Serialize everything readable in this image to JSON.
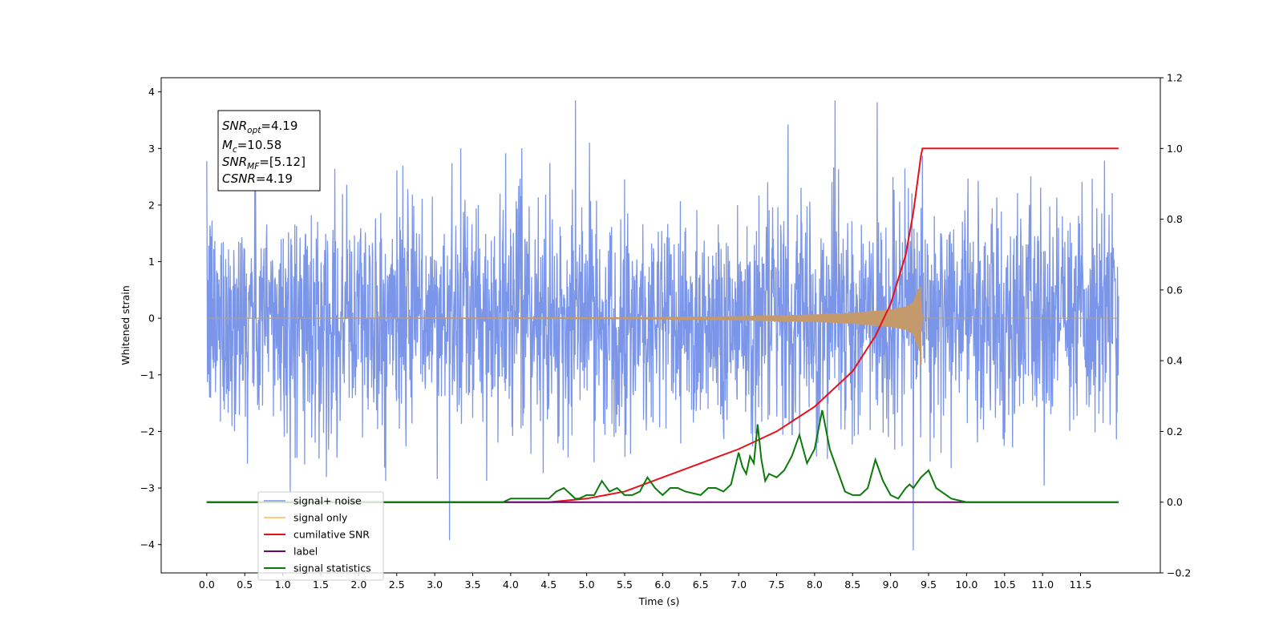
{
  "chart_data": {
    "type": "line",
    "xlabel": "Time (s)",
    "ylabel": "Whitened strain",
    "xlim": [
      -0.6,
      12.55
    ],
    "ylim": [
      -4.5,
      4.25
    ],
    "y2lim": [
      -0.2,
      1.2
    ],
    "x_ticks": [
      "0.0",
      "0.5",
      "1.0",
      "1.5",
      "2.0",
      "2.5",
      "3.0",
      "3.5",
      "4.0",
      "4.5",
      "5.0",
      "5.5",
      "6.0",
      "6.5",
      "7.0",
      "7.5",
      "8.0",
      "8.5",
      "9.0",
      "9.5",
      "10.0",
      "10.5",
      "11.0",
      "11.5"
    ],
    "y_ticks": [
      "4",
      "3",
      "2",
      "1",
      "0",
      "−1",
      "−2",
      "−3",
      "−4"
    ],
    "y2_ticks": [
      "1.2",
      "1.0",
      "0.8",
      "0.6",
      "0.4",
      "0.2",
      "0.0",
      "−0.2"
    ],
    "grid": false,
    "legend_position": "lower-left",
    "annotation": {
      "snr_opt": "=4.19",
      "mc": "=10.58",
      "snr_mf": "=[5.12]",
      "csnr": "=4.19"
    },
    "series": [
      {
        "name": "signal+ noise",
        "color": "#7b96e8",
        "axis": "left",
        "x_range": [
          0.0,
          12.0
        ],
        "description_values": {
          "typical_abs_max": 2.2,
          "peak_max": 3.85,
          "peak_min": -4.1
        }
      },
      {
        "name": "signal only",
        "color": "#c49a6c",
        "axis": "left",
        "x": [
          0.0,
          5.5,
          7.0,
          8.0,
          8.5,
          9.0,
          9.2,
          9.3,
          9.38,
          9.42,
          9.45,
          12.0
        ],
        "envelope": [
          0.0,
          0.01,
          0.03,
          0.06,
          0.09,
          0.15,
          0.2,
          0.28,
          0.55,
          0.0,
          0.0,
          0.0
        ]
      },
      {
        "name": "cumilative SNR",
        "color": "#e8101a",
        "axis": "right",
        "x": [
          0.0,
          4.5,
          5.0,
          5.5,
          6.0,
          6.5,
          7.0,
          7.5,
          8.0,
          8.5,
          8.8,
          9.0,
          9.2,
          9.3,
          9.35,
          9.4,
          9.42,
          12.0
        ],
        "values": [
          0.0,
          0.0,
          0.01,
          0.03,
          0.07,
          0.11,
          0.15,
          0.2,
          0.27,
          0.37,
          0.47,
          0.56,
          0.7,
          0.82,
          0.9,
          0.98,
          1.0,
          1.0
        ]
      },
      {
        "name": "label",
        "color": "#6a0a6a",
        "axis": "right",
        "x": [
          0.0,
          12.0
        ],
        "values": [
          0.0,
          0.0
        ]
      },
      {
        "name": "signal statistics",
        "color": "#0b7a0b",
        "axis": "right",
        "x": [
          0.0,
          3.9,
          4.0,
          4.2,
          4.5,
          4.6,
          4.7,
          4.8,
          4.85,
          4.9,
          5.0,
          5.1,
          5.2,
          5.3,
          5.4,
          5.5,
          5.6,
          5.7,
          5.8,
          5.9,
          6.0,
          6.1,
          6.2,
          6.3,
          6.5,
          6.6,
          6.7,
          6.8,
          6.9,
          7.0,
          7.05,
          7.1,
          7.15,
          7.2,
          7.25,
          7.3,
          7.35,
          7.4,
          7.5,
          7.6,
          7.7,
          7.8,
          7.9,
          7.95,
          8.0,
          8.1,
          8.2,
          8.3,
          8.4,
          8.5,
          8.6,
          8.7,
          8.8,
          8.9,
          9.0,
          9.1,
          9.2,
          9.25,
          9.3,
          9.4,
          9.5,
          9.6,
          9.8,
          10.0,
          11.0,
          12.0
        ],
        "values": [
          0.0,
          0.0,
          0.01,
          0.01,
          0.01,
          0.03,
          0.04,
          0.02,
          0.01,
          0.01,
          0.02,
          0.02,
          0.06,
          0.03,
          0.04,
          0.02,
          0.02,
          0.03,
          0.07,
          0.04,
          0.02,
          0.04,
          0.04,
          0.03,
          0.02,
          0.04,
          0.04,
          0.03,
          0.05,
          0.14,
          0.1,
          0.08,
          0.13,
          0.11,
          0.22,
          0.12,
          0.06,
          0.08,
          0.07,
          0.09,
          0.13,
          0.19,
          0.11,
          0.13,
          0.15,
          0.26,
          0.15,
          0.09,
          0.03,
          0.02,
          0.02,
          0.04,
          0.12,
          0.06,
          0.02,
          0.01,
          0.04,
          0.05,
          0.04,
          0.07,
          0.09,
          0.04,
          0.01,
          0.0,
          0.0,
          0.0
        ]
      }
    ]
  },
  "legend": [
    {
      "label": "signal+ noise",
      "color": "#7b96e8"
    },
    {
      "label": "signal only",
      "color": "#ffc87a"
    },
    {
      "label": "cumilative SNR",
      "color": "#e8101a"
    },
    {
      "label": "label",
      "color": "#6a0a6a"
    },
    {
      "label": "signal statistics",
      "color": "#0b7a0b"
    }
  ]
}
